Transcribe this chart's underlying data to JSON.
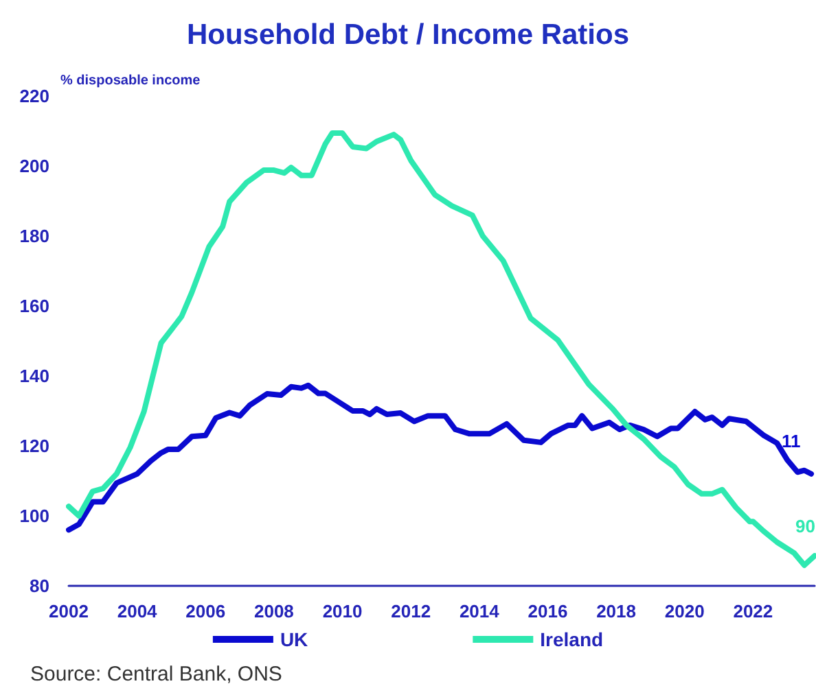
{
  "chart_data": {
    "type": "line",
    "title": "Household Debt / Income Ratios",
    "ylabel": "% disposable income",
    "annotations": [
      "Source: Central Bank, ONS",
      {
        "text": "11",
        "x": 2023.4,
        "y": 113
      },
      {
        "text": "90",
        "x": 2023.8,
        "y": 88.6
      }
    ],
    "xlim": [
      2002,
      2023.8
    ],
    "xticks": [
      2002,
      2004,
      2006,
      2008,
      2010,
      2012,
      2014,
      2016,
      2018,
      2020,
      2022
    ],
    "ylim": [
      80,
      220
    ],
    "yticks": [
      80,
      100,
      120,
      140,
      160,
      180,
      200,
      220
    ],
    "grid": false,
    "legend": "bottom",
    "marker": "none",
    "line_style": "solid",
    "series": [
      {
        "name": "UK",
        "color": "#0a0ad0",
        "x": [
          2002,
          2002.3,
          2002.7,
          2003,
          2003.4,
          2004,
          2004.4,
          2004.7,
          2004.9,
          2005.2,
          2005.6,
          2006,
          2006.3,
          2006.7,
          2007,
          2007.3,
          2007.8,
          2008.2,
          2008.5,
          2008.8,
          2009,
          2009.3,
          2009.5,
          2009.9,
          2010.3,
          2010.6,
          2010.8,
          2011,
          2011.3,
          2011.7,
          2012.1,
          2012.5,
          2013,
          2013.3,
          2013.7,
          2014.3,
          2014.8,
          2015.3,
          2015.8,
          2016.1,
          2016.6,
          2016.8,
          2017,
          2017.3,
          2017.8,
          2018.1,
          2018.4,
          2018.8,
          2019.2,
          2019.6,
          2019.8,
          2020.3,
          2020.6,
          2020.8,
          2021.1,
          2021.3,
          2021.8,
          2022.3,
          2022.7,
          2023,
          2023.3,
          2023.5,
          2023.7
        ],
        "values": [
          96,
          97.6,
          104,
          104,
          109.4,
          112,
          115.7,
          118,
          119,
          119,
          122.7,
          123,
          128,
          129.5,
          128.6,
          131.7,
          134.9,
          134.5,
          136.9,
          136.5,
          137.3,
          135,
          135,
          132.5,
          130,
          130,
          129,
          130.6,
          129,
          129.4,
          127,
          128.6,
          128.6,
          124.7,
          123.5,
          123.5,
          126.3,
          121.6,
          121,
          123.5,
          125.9,
          125.9,
          128.6,
          125,
          126.7,
          124.7,
          125.9,
          124.7,
          122.7,
          125,
          125,
          129.8,
          127.5,
          128.2,
          125.9,
          127.8,
          127,
          123.1,
          120.8,
          116,
          112.5,
          113,
          112
        ]
      },
      {
        "name": "Ireland",
        "color": "#2ee8b0",
        "x": [
          2002,
          2002.3,
          2002.7,
          2003,
          2003.4,
          2003.8,
          2004.2,
          2004.7,
          2005.3,
          2005.6,
          2006.1,
          2006.5,
          2006.7,
          2007.2,
          2007.7,
          2008,
          2008.3,
          2008.5,
          2008.8,
          2009.1,
          2009.5,
          2009.7,
          2010,
          2010.3,
          2010.7,
          2011,
          2011.5,
          2011.7,
          2012,
          2012.7,
          2013.2,
          2013.8,
          2014.1,
          2014.7,
          2015.5,
          2016.3,
          2017.2,
          2017.9,
          2018.3,
          2018.8,
          2019.3,
          2019.7,
          2020.1,
          2020.5,
          2020.8,
          2021.1,
          2021.5,
          2021.9,
          2022,
          2022.3,
          2022.7,
          2023.2,
          2023.5,
          2023.8
        ],
        "values": [
          102.7,
          100,
          107,
          107.8,
          112,
          119.6,
          129.8,
          149.4,
          157,
          163.9,
          176.9,
          182.7,
          189.8,
          195.3,
          198.8,
          198.8,
          198,
          199.6,
          197.3,
          197.3,
          206.3,
          209.4,
          209.4,
          205.5,
          205,
          207,
          209,
          207.5,
          201.6,
          191.8,
          188.6,
          185.9,
          180,
          172.9,
          156.5,
          150.2,
          137.6,
          130.6,
          125.9,
          122,
          116.9,
          114,
          109,
          106.3,
          106.3,
          107.5,
          102.4,
          98.4,
          98.4,
          95.7,
          92.5,
          89.4,
          85.9,
          88.6
        ]
      }
    ]
  }
}
